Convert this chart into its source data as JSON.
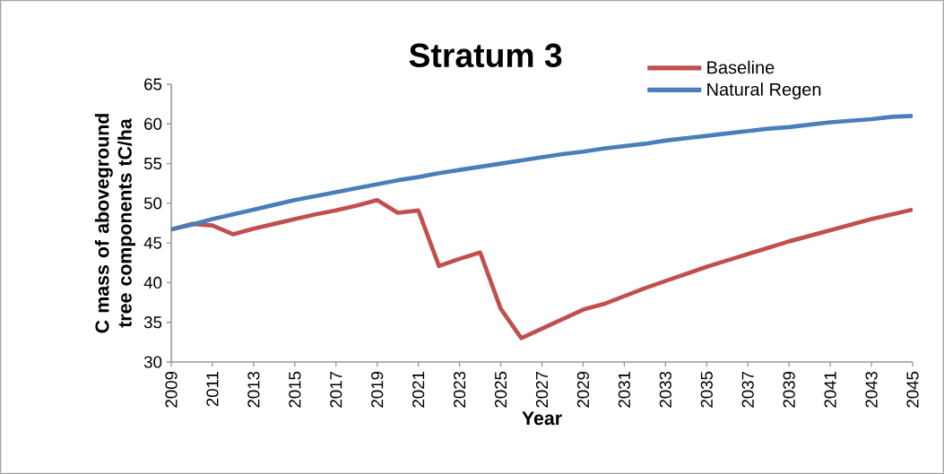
{
  "chart_data": {
    "type": "line",
    "title": "Stratum 3",
    "xlabel": "Year",
    "ylabel": "C mass of aboveground tree components tC/ha",
    "x": [
      2009,
      2010,
      2011,
      2012,
      2013,
      2014,
      2015,
      2016,
      2017,
      2018,
      2019,
      2020,
      2021,
      2022,
      2023,
      2024,
      2025,
      2026,
      2027,
      2028,
      2029,
      2030,
      2031,
      2032,
      2033,
      2034,
      2035,
      2036,
      2037,
      2038,
      2039,
      2040,
      2041,
      2042,
      2043,
      2044,
      2045
    ],
    "series": [
      {
        "name": "Baseline",
        "color": "#c0504d",
        "values": [
          46.7,
          47.4,
          47.2,
          46.1,
          46.8,
          47.4,
          48.0,
          48.6,
          49.1,
          49.7,
          50.4,
          48.8,
          49.1,
          42.1,
          43.0,
          43.8,
          36.7,
          33.0,
          34.2,
          35.4,
          36.6,
          37.3,
          38.3,
          39.3,
          40.2,
          41.1,
          42.0,
          42.8,
          43.6,
          44.4,
          45.2,
          45.9,
          46.6,
          47.3,
          48.0,
          48.6,
          49.2
        ]
      },
      {
        "name": "Natural Regen",
        "color": "#4a7ebb",
        "values": [
          46.7,
          47.3,
          48.0,
          48.6,
          49.2,
          49.8,
          50.4,
          50.9,
          51.4,
          51.9,
          52.4,
          52.9,
          53.3,
          53.8,
          54.2,
          54.6,
          55.0,
          55.4,
          55.8,
          56.2,
          56.5,
          56.9,
          57.2,
          57.5,
          57.9,
          58.2,
          58.5,
          58.8,
          59.1,
          59.4,
          59.6,
          59.9,
          60.2,
          60.4,
          60.6,
          60.9,
          61.0
        ]
      }
    ],
    "xlim": [
      2009,
      2045
    ],
    "ylim": [
      30,
      65
    ],
    "xticks": [
      2009,
      2011,
      2013,
      2015,
      2017,
      2019,
      2021,
      2023,
      2025,
      2027,
      2029,
      2031,
      2033,
      2035,
      2037,
      2039,
      2041,
      2043,
      2045
    ],
    "yticks": [
      30,
      35,
      40,
      45,
      50,
      55,
      60,
      65
    ],
    "legend": "top right"
  }
}
